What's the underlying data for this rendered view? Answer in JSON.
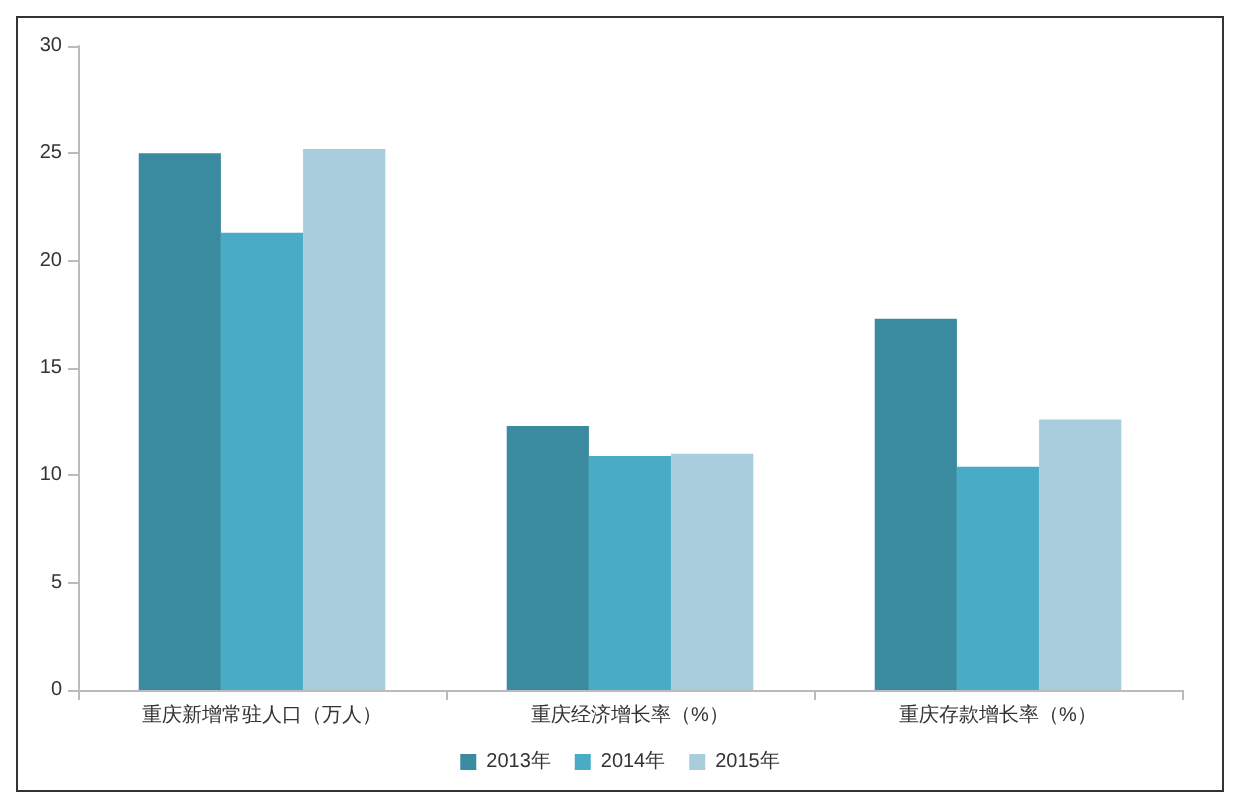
{
  "chart_data": {
    "type": "bar",
    "categories": [
      "重庆新增常驻人口（万人）",
      "重庆经济增长率（%）",
      "重庆存款增长率（%）"
    ],
    "series": [
      {
        "name": "2013年",
        "color": "#3a8aa0",
        "values": [
          25.0,
          12.3,
          17.3
        ]
      },
      {
        "name": "2014年",
        "color": "#4aabc6",
        "values": [
          21.3,
          10.9,
          10.4
        ]
      },
      {
        "name": "2015年",
        "color": "#a8cddc",
        "values": [
          25.2,
          11.0,
          12.6
        ]
      }
    ],
    "ylim": [
      0,
      30
    ],
    "yticks": [
      0,
      5,
      10,
      15,
      20,
      25,
      30
    ],
    "grid": false,
    "legend": "bottom"
  }
}
